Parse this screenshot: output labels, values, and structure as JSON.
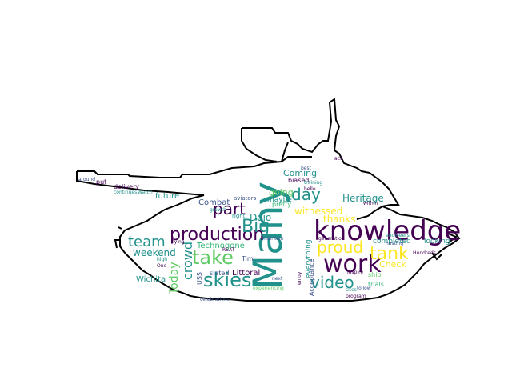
{
  "colors": {
    "background": "#ffffff",
    "outline": "#000000",
    "palette": [
      "#440154",
      "#3b528b",
      "#21918c",
      "#5ec962",
      "#fde725",
      "#31688e",
      "#35b779",
      "#90d743",
      "#2c728e",
      "#472d7b"
    ]
  },
  "words": [
    {
      "text": "Many"
    },
    {
      "text": "knowledge"
    },
    {
      "text": "work"
    },
    {
      "text": "production"
    },
    {
      "text": "skies"
    },
    {
      "text": "take"
    },
    {
      "text": "video"
    },
    {
      "text": "tank"
    },
    {
      "text": "part"
    },
    {
      "text": "Big"
    },
    {
      "text": "proud"
    },
    {
      "text": "day"
    },
    {
      "text": "team"
    },
    {
      "text": "crowd"
    },
    {
      "text": "Today"
    },
    {
      "text": "Heritage"
    },
    {
      "text": "witnessed"
    },
    {
      "text": "Dojo"
    },
    {
      "text": "weekend"
    },
    {
      "text": "thanks"
    },
    {
      "text": "going"
    },
    {
      "text": "Check"
    },
    {
      "text": "Coming"
    },
    {
      "text": "future"
    },
    {
      "text": "Combat"
    },
    {
      "text": "Littoral"
    },
    {
      "text": "Technogone"
    },
    {
      "text": "Wichita"
    },
    {
      "text": "maybe"
    },
    {
      "text": "completed"
    },
    {
      "text": "looking"
    },
    {
      "text": "everything"
    },
    {
      "text": "Acceptance"
    },
    {
      "text": "trials"
    },
    {
      "text": "ship"
    },
    {
      "text": "USS"
    },
    {
      "text": "slated"
    },
    {
      "text": "Tim"
    },
    {
      "text": "delivery"
    },
    {
      "text": "put"
    },
    {
      "text": "biased"
    },
    {
      "text": "pretty"
    },
    {
      "text": "aviators"
    },
    {
      "text": "right"
    },
    {
      "text": "celebrations"
    },
    {
      "text": "hosting"
    },
    {
      "text": "engineers"
    },
    {
      "text": "around"
    },
    {
      "text": "continues"
    },
    {
      "text": "Watch"
    },
    {
      "text": "growth"
    },
    {
      "text": "flying"
    },
    {
      "text": "RSAT"
    },
    {
      "text": "next"
    },
    {
      "text": "One"
    },
    {
      "text": "inspire"
    },
    {
      "text": "follow"
    },
    {
      "text": "program"
    },
    {
      "text": "training"
    },
    {
      "text": "hello"
    },
    {
      "text": "high"
    },
    {
      "text": "Hundreds"
    },
    {
      "text": "within"
    },
    {
      "text": "generation"
    },
    {
      "text": "best"
    },
    {
      "text": "sites"
    },
    {
      "text": "maintain"
    },
    {
      "text": "experiencing"
    },
    {
      "text": "enjoy"
    },
    {
      "text": "act"
    }
  ]
}
